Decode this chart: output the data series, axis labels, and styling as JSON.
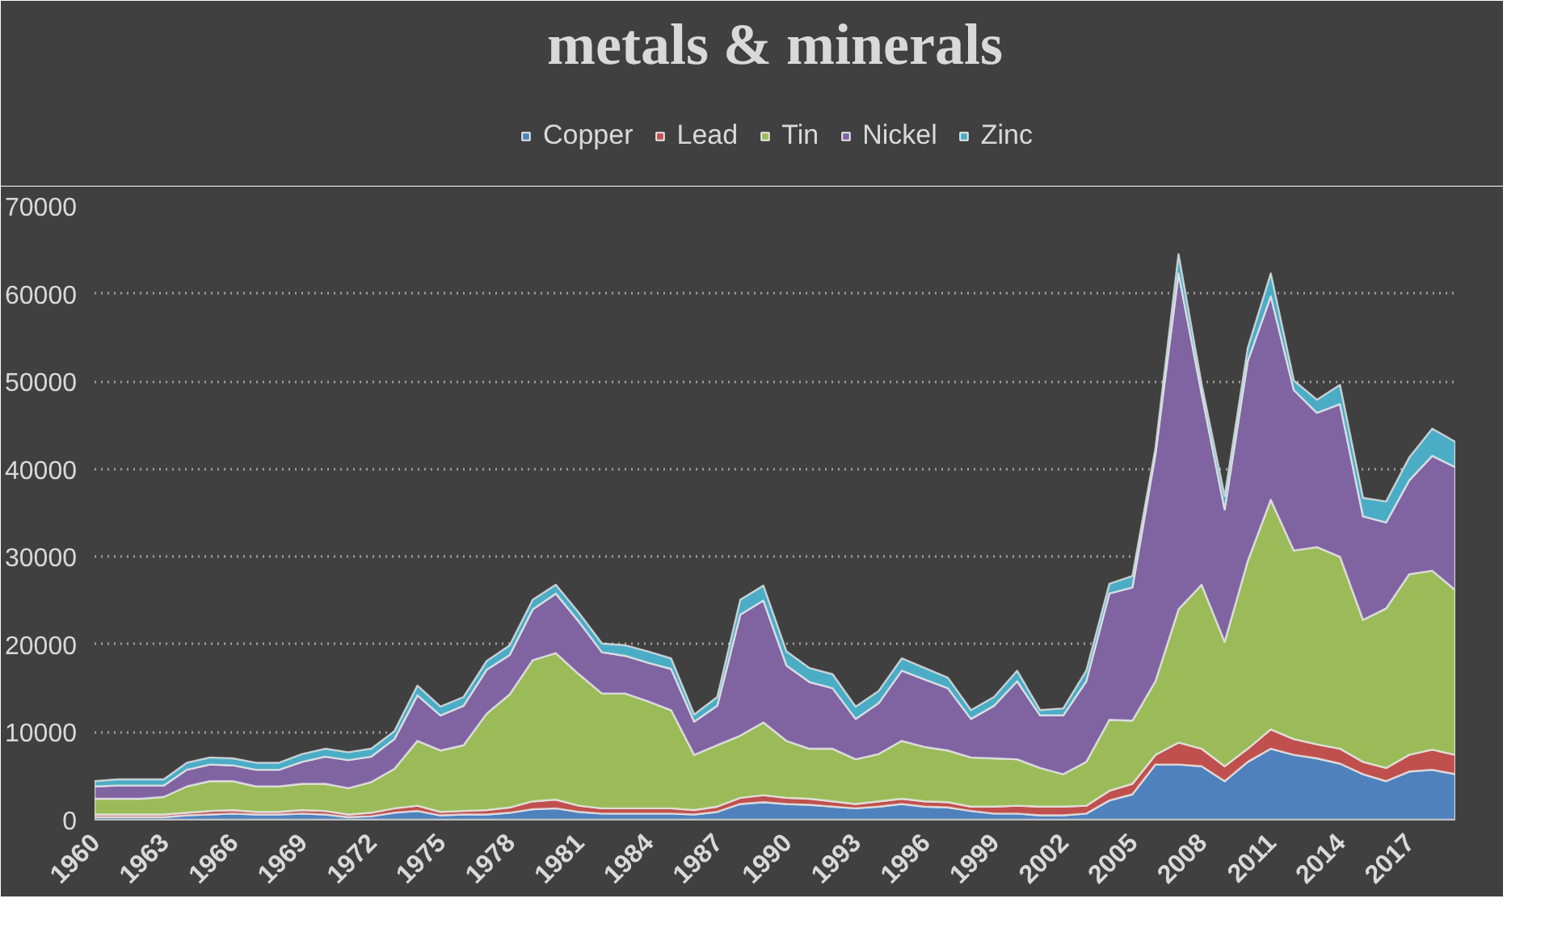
{
  "chart_data": {
    "type": "area",
    "title": "metals & minerals",
    "stacked": true,
    "x": [
      1960,
      1961,
      1962,
      1963,
      1964,
      1965,
      1966,
      1967,
      1968,
      1969,
      1970,
      1971,
      1972,
      1973,
      1974,
      1975,
      1976,
      1977,
      1978,
      1979,
      1980,
      1981,
      1982,
      1983,
      1984,
      1985,
      1986,
      1987,
      1988,
      1989,
      1990,
      1991,
      1992,
      1993,
      1994,
      1995,
      1996,
      1997,
      1998,
      1999,
      2000,
      2001,
      2002,
      2003,
      2004,
      2005,
      2006,
      2007,
      2008,
      2009,
      2010,
      2011,
      2012,
      2013,
      2014,
      2015,
      2016,
      2017,
      2018,
      2019
    ],
    "series": [
      {
        "name": "Copper",
        "color": "#4f81bd",
        "values": [
          300,
          300,
          300,
          300,
          500,
          600,
          700,
          600,
          600,
          700,
          600,
          300,
          400,
          800,
          1000,
          500,
          600,
          600,
          800,
          1200,
          1300,
          900,
          700,
          700,
          700,
          700,
          600,
          900,
          1800,
          2000,
          1800,
          1700,
          1500,
          1300,
          1500,
          1800,
          1500,
          1400,
          1000,
          700,
          700,
          500,
          500,
          700,
          2200,
          2900,
          6300,
          6300,
          6100,
          4400,
          6600,
          8100,
          7400,
          7000,
          6400,
          5200,
          4400,
          5500,
          5700,
          5200
        ]
      },
      {
        "name": "Lead",
        "color": "#c0504d",
        "values": [
          300,
          300,
          300,
          300,
          300,
          400,
          400,
          300,
          300,
          400,
          400,
          300,
          400,
          500,
          600,
          400,
          400,
          500,
          600,
          900,
          1000,
          700,
          600,
          600,
          600,
          600,
          500,
          600,
          700,
          800,
          700,
          700,
          600,
          500,
          600,
          600,
          600,
          600,
          500,
          800,
          900,
          1000,
          1000,
          900,
          1100,
          1200,
          1100,
          2500,
          2000,
          1700,
          1500,
          2200,
          1800,
          1600,
          1700,
          1400,
          1500,
          1900,
          2300,
          2200
        ]
      },
      {
        "name": "Tin",
        "color": "#9bbb59",
        "values": [
          1800,
          1800,
          1800,
          2000,
          3000,
          3400,
          3300,
          2900,
          2900,
          3000,
          3100,
          3000,
          3500,
          4500,
          7400,
          7000,
          7500,
          11000,
          12900,
          16100,
          16700,
          15000,
          13100,
          13100,
          12200,
          11200,
          6300,
          7000,
          7100,
          8300,
          6500,
          5700,
          6000,
          5100,
          5400,
          6600,
          6200,
          5900,
          5600,
          5500,
          5300,
          4400,
          3700,
          5000,
          8100,
          7200,
          8400,
          15200,
          18700,
          14200,
          21400,
          26200,
          21500,
          22500,
          21900,
          16200,
          18200,
          20600,
          20400,
          18800
        ]
      },
      {
        "name": "Nickel",
        "color": "#8064a2",
        "values": [
          1400,
          1500,
          1500,
          1300,
          1900,
          1900,
          1800,
          1900,
          1900,
          2500,
          3100,
          3200,
          2900,
          3400,
          5200,
          4000,
          4500,
          5000,
          4500,
          5800,
          6800,
          6000,
          4700,
          4300,
          4400,
          4700,
          3800,
          4500,
          13800,
          13900,
          8600,
          7600,
          6900,
          4600,
          5800,
          8000,
          7700,
          7100,
          4400,
          6000,
          8900,
          6000,
          6700,
          9200,
          14400,
          15200,
          25900,
          38300,
          21800,
          15100,
          22800,
          23200,
          18300,
          15300,
          17400,
          11800,
          9800,
          10700,
          13100,
          14000
        ]
      },
      {
        "name": "Zinc",
        "color": "#4bacc6",
        "values": [
          600,
          700,
          700,
          700,
          800,
          800,
          800,
          800,
          800,
          900,
          900,
          900,
          900,
          900,
          1100,
          1000,
          1000,
          1000,
          1100,
          1100,
          1000,
          1000,
          1000,
          1200,
          1300,
          1200,
          800,
          1000,
          1700,
          1700,
          1600,
          1600,
          1600,
          1400,
          1400,
          1400,
          1300,
          1200,
          1000,
          1000,
          1200,
          600,
          800,
          1200,
          1100,
          1300,
          700,
          2200,
          1100,
          1500,
          1500,
          2600,
          1100,
          1500,
          2200,
          2100,
          2400,
          2600,
          3100,
          2900
        ]
      }
    ],
    "xlim": [
      1960,
      2019
    ],
    "xticks": [
      1960,
      1963,
      1966,
      1969,
      1972,
      1975,
      1978,
      1981,
      1984,
      1987,
      1990,
      1993,
      1996,
      1999,
      2002,
      2005,
      2008,
      2011,
      2014,
      2017
    ],
    "ylim": [
      0,
      70000
    ],
    "yticks": [
      0,
      10000,
      20000,
      30000,
      40000,
      50000,
      60000,
      70000
    ],
    "grid": "y",
    "legend": "top"
  }
}
